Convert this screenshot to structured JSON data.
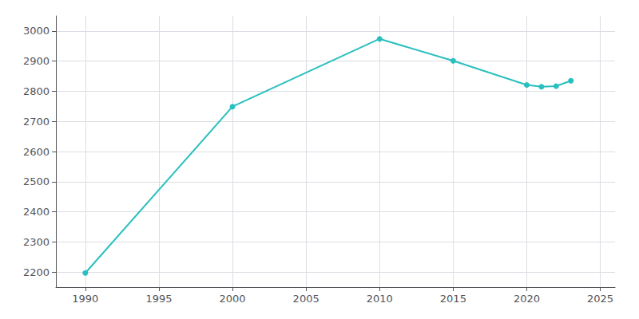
{
  "chart_data": {
    "type": "line",
    "x": [
      1990,
      2000,
      2010,
      2015,
      2020,
      2021,
      2022,
      2023
    ],
    "values": [
      2197,
      2749,
      2974,
      2901,
      2821,
      2815,
      2817,
      2835
    ],
    "color": "#2abfbf",
    "marker": "circle",
    "xlim": [
      1988,
      2026
    ],
    "xticks": [
      1990,
      1995,
      2000,
      2005,
      2010,
      2015,
      2020,
      2025
    ],
    "ylim": [
      2150,
      3050
    ],
    "yticks": [
      2200,
      2300,
      2400,
      2500,
      2600,
      2700,
      2800,
      2900,
      3000
    ],
    "grid": true
  }
}
